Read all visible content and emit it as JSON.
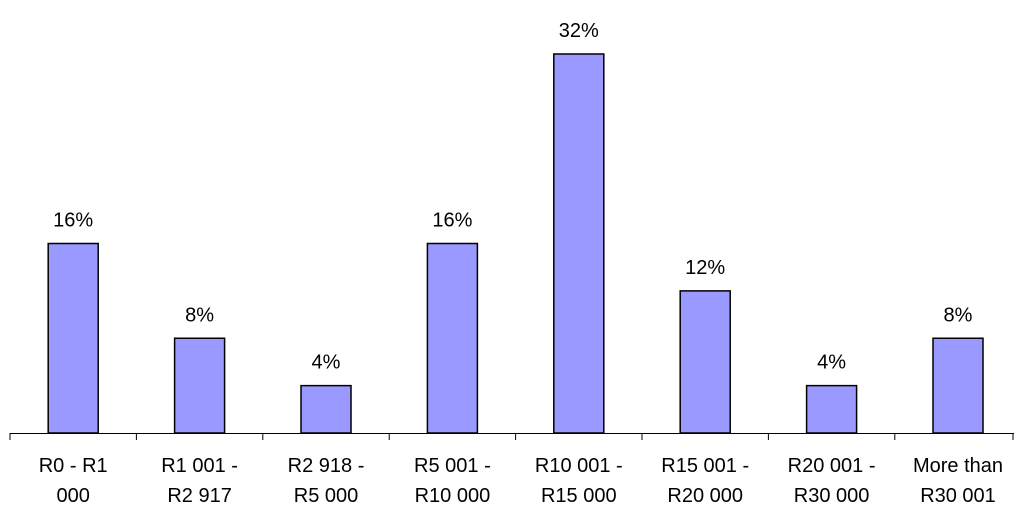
{
  "chart_data": {
    "type": "bar",
    "categories": [
      [
        "R0 - R1",
        "000"
      ],
      [
        "R1 001 -",
        "R2 917"
      ],
      [
        "R2 918 -",
        "R5 000"
      ],
      [
        "R5 001 -",
        "R10 000"
      ],
      [
        "R10 001 -",
        "R15 000"
      ],
      [
        "R15 001 -",
        "R20 000"
      ],
      [
        "R20 001 -",
        "R30 000"
      ],
      [
        "More than",
        "R30 001"
      ]
    ],
    "values": [
      16,
      8,
      4,
      16,
      32,
      12,
      4,
      8
    ],
    "data_labels": [
      "16%",
      "8%",
      "4%",
      "16%",
      "32%",
      "12%",
      "4%",
      "8%"
    ],
    "unit": "%",
    "ylim": [
      0,
      32
    ],
    "grid": false,
    "legend": "none",
    "bar_color": "#9999FF"
  }
}
